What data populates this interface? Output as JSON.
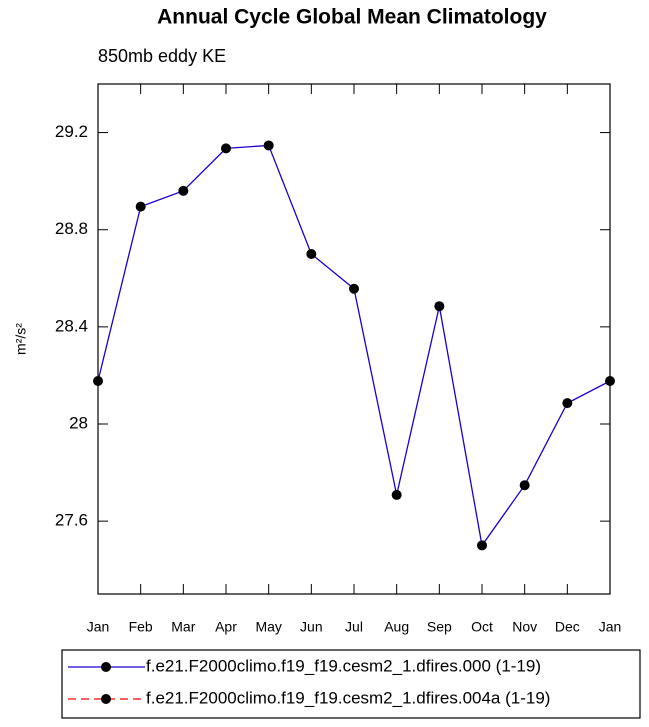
{
  "chart_data": {
    "type": "line",
    "title": "Annual Cycle Global Mean Climatology",
    "subtitle": "850mb eddy KE",
    "y_label": "m²/s²",
    "categories": [
      "Jan",
      "Feb",
      "Mar",
      "Apr",
      "May",
      "Jun",
      "Jul",
      "Aug",
      "Sep",
      "Oct",
      "Nov",
      "Dec",
      "Jan"
    ],
    "series": [
      {
        "name": "f.e21.F2000climo.f19_f19.cesm2_1.dfires.000 (1-19)",
        "color": "#1a00d0",
        "dash": false,
        "values": [
          28.177,
          28.895,
          28.96,
          29.135,
          29.147,
          28.7,
          28.557,
          27.708,
          28.485,
          27.5,
          27.748,
          28.086,
          28.177
        ]
      },
      {
        "name": "f.e21.F2000climo.f19_f19.cesm2_1.dfires.004a (1-19)",
        "color": "#ff0000",
        "dash": true,
        "values": [
          null,
          null,
          null,
          null,
          null,
          null,
          null,
          null,
          null,
          null,
          null,
          null,
          null
        ]
      }
    ],
    "marker_color": "#000000",
    "ylim": [
      27.3,
      29.4
    ],
    "yticks": [
      27.6,
      28.0,
      28.4,
      28.8,
      29.2
    ],
    "grid": false,
    "legend": "bottom"
  }
}
